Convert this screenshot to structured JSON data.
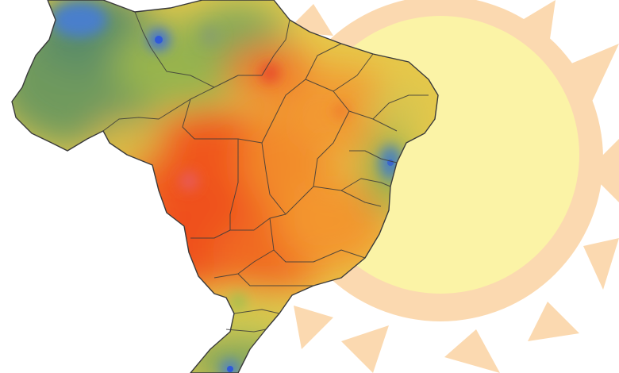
{
  "image": {
    "subject": "brazil-temperature-heatmap",
    "overlay": "sun-icon",
    "legend_visible": false,
    "text_visible": false
  },
  "colors": {
    "background": "#ffffff",
    "sun_rays": "#fbd9b0",
    "sun_disc": "#fbf3a6",
    "hot_red": "#f0501c",
    "hot_orange": "#f38c2a",
    "warm_yellow": "#e8d84c",
    "mild_green": "#9fb84a",
    "cool_green": "#5e9161",
    "cold_blue": "#4a7fcc",
    "border_lines": "#3a3a3a"
  },
  "map": {
    "country": "Brazil",
    "state_borders_visible": true,
    "cold_spots": [
      "north-west",
      "north",
      "east-coast",
      "far-south"
    ],
    "hot_core": "center-west"
  }
}
